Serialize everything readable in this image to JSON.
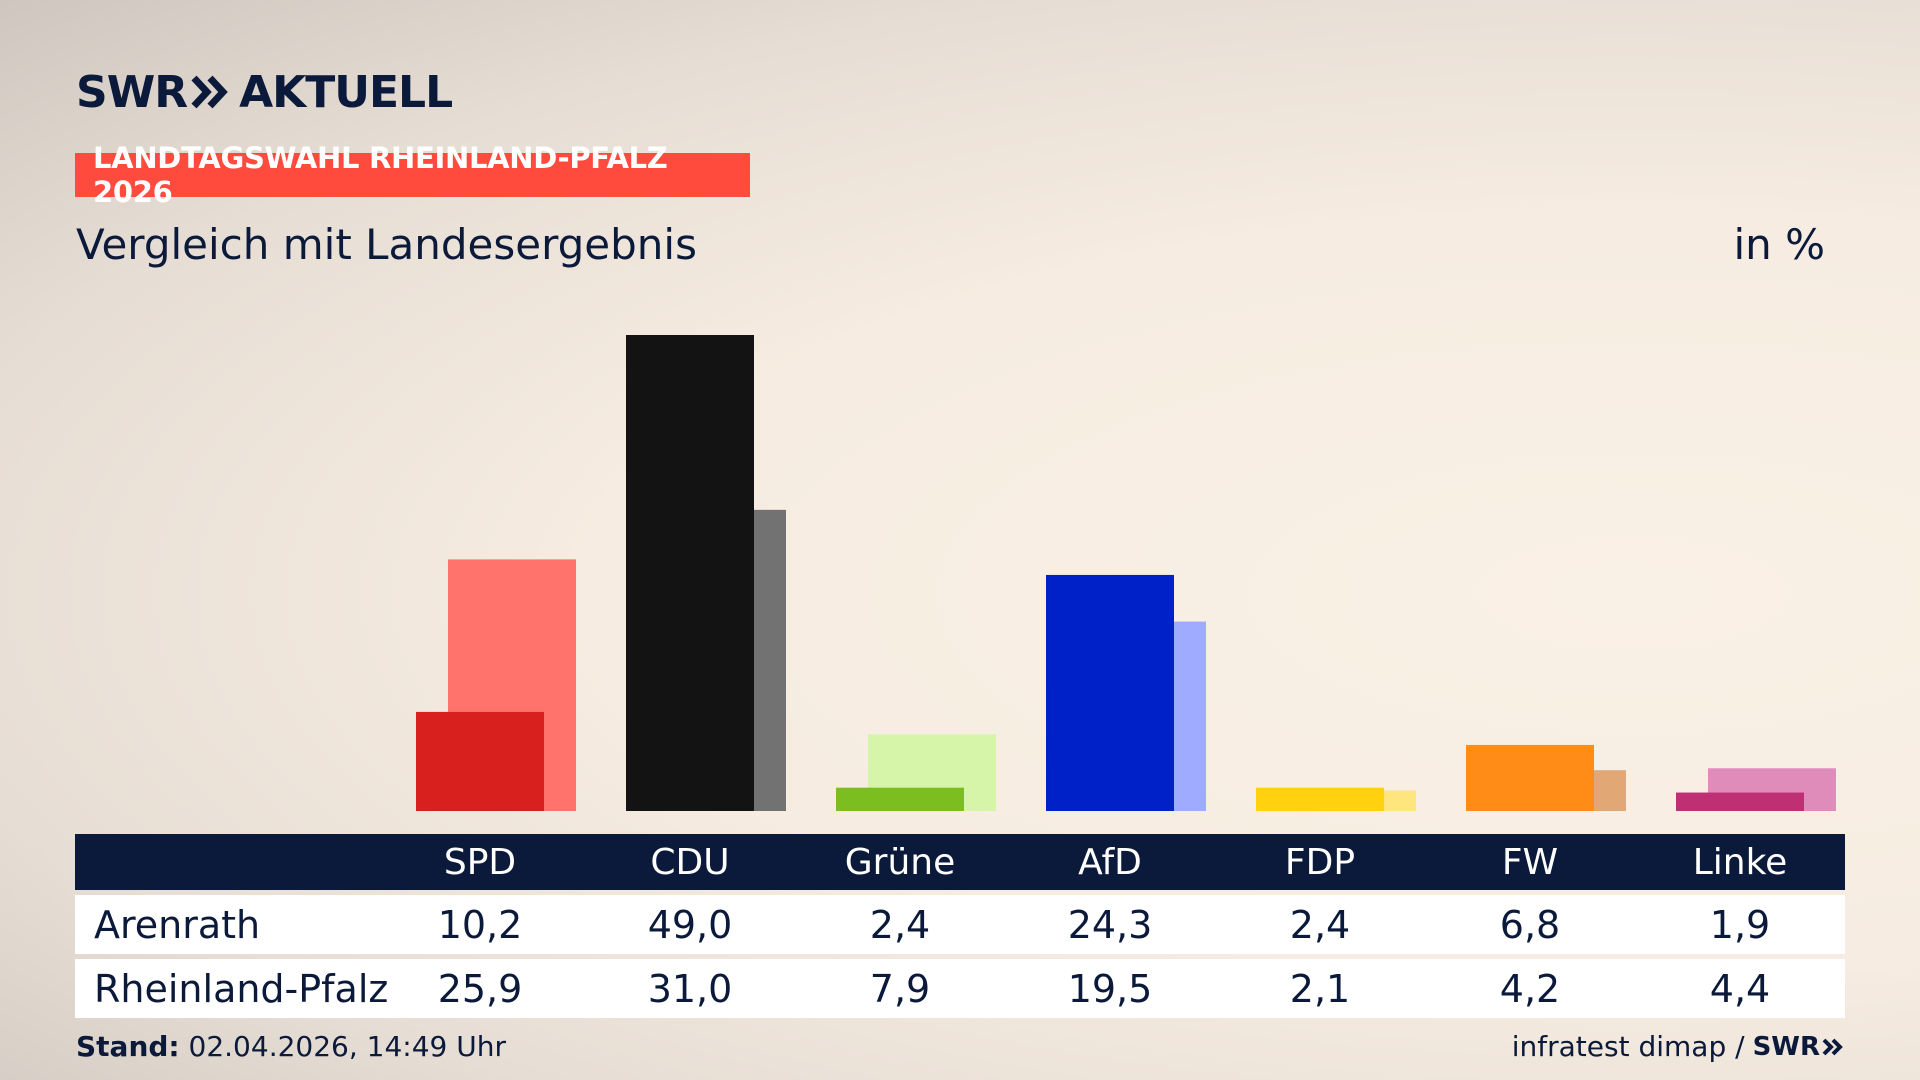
{
  "logo": {
    "brand": "SWR",
    "product": "AKTUELL"
  },
  "tag": "LANDTAGSWAHL RHEINLAND-PFALZ 2026",
  "subtitle": "Vergleich mit Landesergebnis",
  "unit": "in %",
  "chart_data": {
    "type": "bar",
    "categories": [
      "SPD",
      "CDU",
      "Grüne",
      "AfD",
      "FDP",
      "FW",
      "Linke"
    ],
    "series": [
      {
        "name": "Arenrath",
        "values": [
          10.2,
          49.0,
          2.4,
          24.3,
          2.4,
          6.8,
          1.9
        ]
      },
      {
        "name": "Rheinland-Pfalz",
        "values": [
          25.9,
          31.0,
          7.9,
          19.5,
          2.1,
          4.2,
          4.4
        ]
      }
    ],
    "colors_local": [
      "#d8201f",
      "#131313",
      "#7cbd1f",
      "#0021c8",
      "#ffd10f",
      "#ff8c17",
      "#bf2f74"
    ],
    "colors_state": [
      "#ff736c",
      "#727272",
      "#d6f5a9",
      "#9eabff",
      "#ffe57d",
      "#e1a774",
      "#e08cbb"
    ],
    "ylim": [
      0,
      50
    ]
  },
  "table": {
    "rows": [
      {
        "label": "Arenrath",
        "values": [
          "10,2",
          "49,0",
          "2,4",
          "24,3",
          "2,4",
          "6,8",
          "1,9"
        ]
      },
      {
        "label": "Rheinland-Pfalz",
        "values": [
          "25,9",
          "31,0",
          "7,9",
          "19,5",
          "2,1",
          "4,2",
          "4,4"
        ]
      }
    ]
  },
  "footer": {
    "stand_label": "Stand:",
    "stand_value": "02.04.2026, 14:49 Uhr",
    "source": "infratest dimap /",
    "source_brand": "SWR"
  }
}
